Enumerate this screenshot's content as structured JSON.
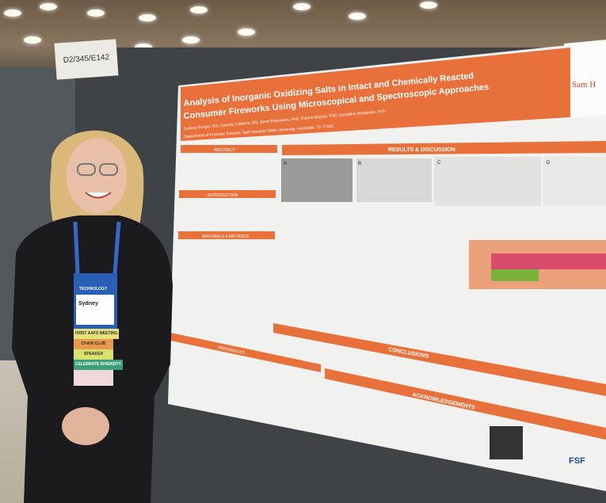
{
  "scene": {
    "booth_sign": "D2/345/E142",
    "badge": {
      "name": "Sydney",
      "header": "TECHNOLOGY",
      "ribbons": [
        "FIRST AAFS MEETING",
        "CHAIN CLUB",
        "SPEAKER",
        "CELEBRATE DIVERSITY"
      ]
    },
    "poster": {
      "title_line1": "Analysis of Inorganic Oxidizing Salts in Intact and Chemically Reacted",
      "title_line2": "Consumer Fireworks Using Microscopical and Spectroscopic Approaches",
      "authors": "Sydney Sanger, BS; Cassidy Calabria, BS; Jared Estevanes, PhD; Patrick Buzzini, PhD; Geraldine Monjardez, PhD",
      "affiliation": "Department of Forensic Science, Sam Houston State University, Huntsville, TX 77340",
      "university_logo": "Sam Houston State University",
      "sections": {
        "abstract": "ABSTRACT",
        "results": "RESULTS & DISCUSSION",
        "introduction": "INTRODUCTION",
        "methods": "MATERIALS & METHODS",
        "references": "REFERENCES",
        "conclusions": "CONCLUSIONS",
        "acknowledgements": "ACKNOWLEDGEMENTS"
      },
      "panel_labels": [
        "A",
        "B",
        "C",
        "D"
      ],
      "sponsor_logo": "FSF"
    },
    "colors": {
      "accent": "#e8703a",
      "poster_bg": "#f1f1ef",
      "sweater": "#1b1a1c"
    }
  }
}
